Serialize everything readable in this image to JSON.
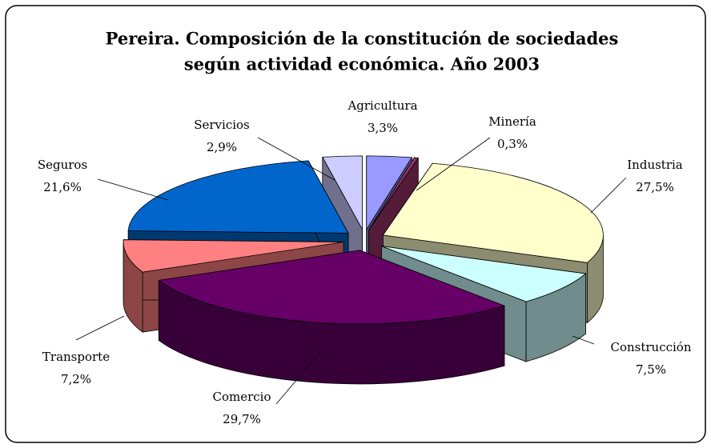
{
  "chart_data": {
    "type": "pie",
    "title": [
      "Pereira. Composición de la constitución de sociedades",
      "según actividad económica. Año 2003"
    ],
    "categories": [
      "Agricultura",
      "Minería",
      "Industria",
      "Construcción",
      "Comercio",
      "Transporte",
      "Seguros",
      "Servicios"
    ],
    "values": [
      3.3,
      0.3,
      27.5,
      7.5,
      29.7,
      7.2,
      21.6,
      2.9
    ],
    "value_labels": [
      "3,3%",
      "0,3%",
      "27,5%",
      "7,5%",
      "29,7%",
      "7,2%",
      "21,6%",
      "2,9%"
    ],
    "colors": [
      "#9999ff",
      "#993366",
      "#ffffcc",
      "#ccffff",
      "#660066",
      "#ff8080",
      "#0066cc",
      "#ccccff"
    ]
  }
}
